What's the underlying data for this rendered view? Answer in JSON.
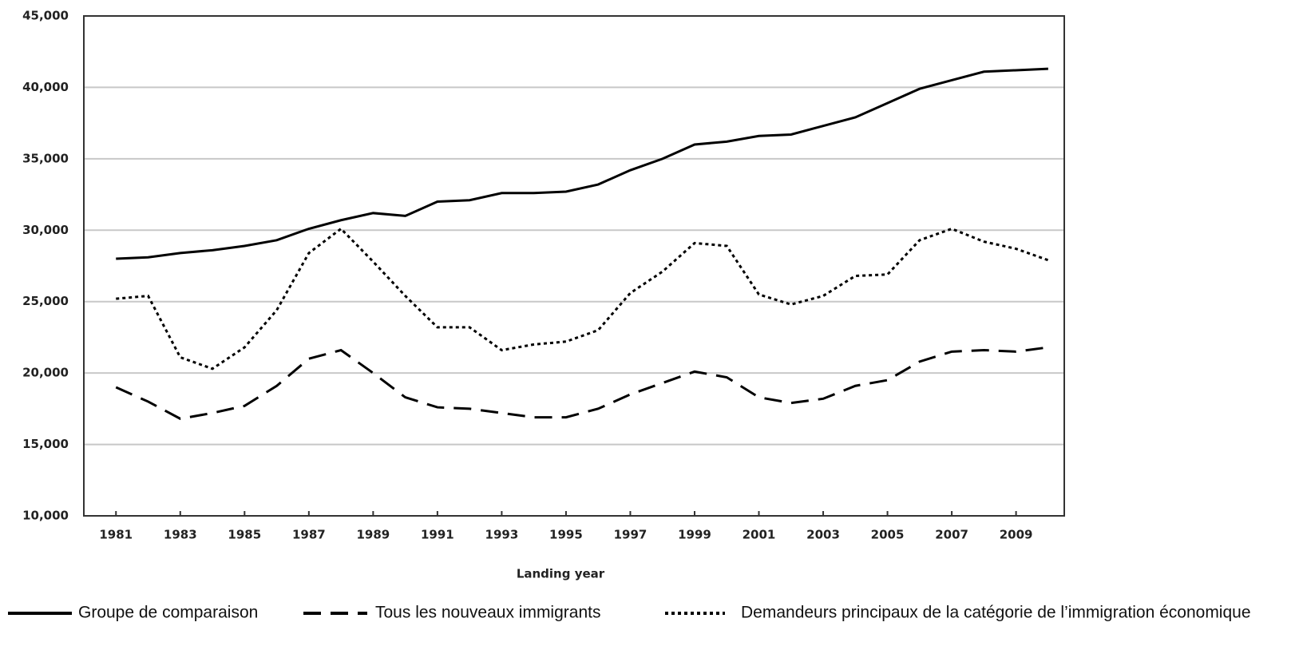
{
  "chart_data": {
    "type": "line",
    "xlabel": "Landing year",
    "x": [
      1981,
      1982,
      1983,
      1984,
      1985,
      1986,
      1987,
      1988,
      1989,
      1990,
      1991,
      1992,
      1993,
      1994,
      1995,
      1996,
      1997,
      1998,
      1999,
      2000,
      2001,
      2002,
      2003,
      2004,
      2005,
      2006,
      2007,
      2008,
      2009,
      2010
    ],
    "xlim": [
      1980,
      2010.5
    ],
    "xticks": [
      1981,
      1983,
      1985,
      1987,
      1989,
      1991,
      1993,
      1995,
      1997,
      1999,
      2001,
      2003,
      2005,
      2007,
      2009
    ],
    "ylim": [
      10000,
      45000
    ],
    "yticks": [
      {
        "value": 10000,
        "label": "10,000"
      },
      {
        "value": 15000,
        "label": "15,000"
      },
      {
        "value": 20000,
        "label": "20,000"
      },
      {
        "value": 25000,
        "label": "25,000"
      },
      {
        "value": 30000,
        "label": "30,000"
      },
      {
        "value": 35000,
        "label": "35,000"
      },
      {
        "value": 40000,
        "label": "40,000"
      },
      {
        "value": 45000,
        "label": "45,000"
      }
    ],
    "grid": true,
    "legend": "bottom",
    "series": [
      {
        "name": "Groupe de comparaison",
        "color": "#000000",
        "style": "solid",
        "values": [
          28000,
          28100,
          28400,
          28600,
          28900,
          29300,
          30100,
          30700,
          31200,
          31000,
          32000,
          32100,
          32600,
          32600,
          32700,
          33200,
          34200,
          35000,
          36000,
          36200,
          36600,
          36700,
          37300,
          37900,
          38900,
          39900,
          40500,
          41100,
          41200,
          41300
        ]
      },
      {
        "name": "Tous les nouveaux immigrants",
        "color": "#000000",
        "style": "dashed",
        "values": [
          19000,
          18000,
          16800,
          17200,
          17700,
          19100,
          21000,
          21600,
          20000,
          18300,
          17600,
          17500,
          17200,
          16900,
          16900,
          17500,
          18500,
          19300,
          20100,
          19700,
          18300,
          17900,
          18200,
          19100,
          19500,
          20800,
          21500,
          21600,
          21500,
          21800
        ]
      },
      {
        "name": "Demandeurs principaux de la catégorie de l’immigration économique",
        "color": "#000000",
        "style": "dotted",
        "values": [
          25200,
          25400,
          21100,
          20300,
          21800,
          24400,
          28400,
          30100,
          27800,
          25400,
          23200,
          23200,
          21600,
          22000,
          22200,
          23000,
          25600,
          27100,
          29100,
          28900,
          25500,
          24800,
          25400,
          26800,
          26900,
          29300,
          30100,
          29200,
          28700,
          27900
        ]
      }
    ]
  }
}
